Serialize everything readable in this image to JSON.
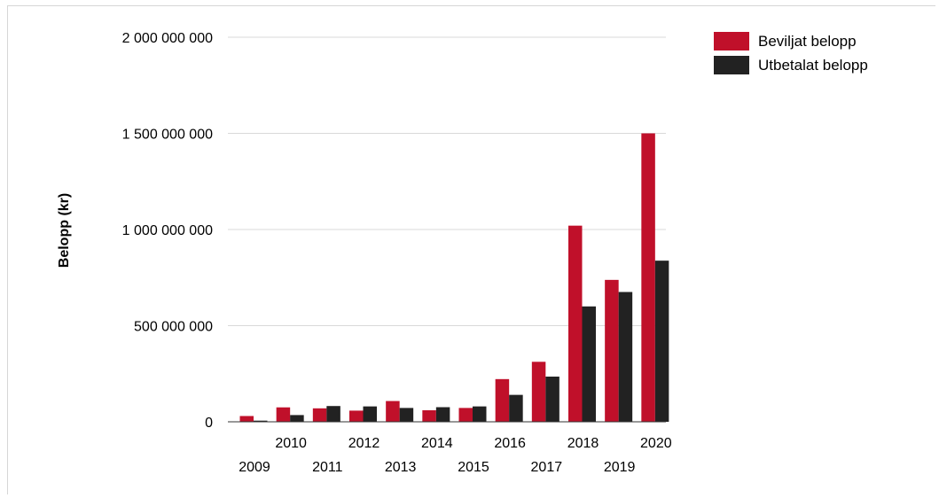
{
  "chart_data": {
    "type": "bar",
    "title": "",
    "xlabel": "",
    "ylabel": "Belopp (kr)",
    "ylim": [
      0,
      2000000000
    ],
    "yticks": [
      {
        "value": 0,
        "label": "0"
      },
      {
        "value": 500000000,
        "label": "500 000 000"
      },
      {
        "value": 1000000000,
        "label": "1 000 000 000"
      },
      {
        "value": 1500000000,
        "label": "1 500 000 000"
      },
      {
        "value": 2000000000,
        "label": "2 000 000 000"
      }
    ],
    "grid": true,
    "legend_position": "top-right",
    "categories": [
      "2009",
      "2010",
      "2011",
      "2012",
      "2013",
      "2014",
      "2015",
      "2016",
      "2017",
      "2018",
      "2019",
      "2020"
    ],
    "series": [
      {
        "name": "Beviljat belopp",
        "color": "#c0102a",
        "values": [
          30000000,
          75000000,
          70000000,
          58000000,
          108000000,
          60000000,
          72000000,
          222000000,
          312000000,
          1020000000,
          738000000,
          1500000000
        ]
      },
      {
        "name": "Utbetalat belopp",
        "color": "#222222",
        "values": [
          6000000,
          35000000,
          82000000,
          80000000,
          72000000,
          76000000,
          80000000,
          140000000,
          235000000,
          600000000,
          675000000,
          838000000
        ]
      }
    ]
  }
}
